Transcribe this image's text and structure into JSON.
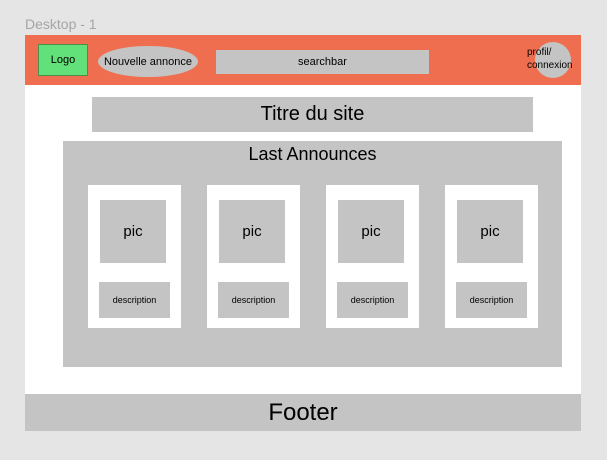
{
  "frame_label": "Desktop - 1",
  "header": {
    "logo": "Logo",
    "new_ad": "Nouvelle annonce",
    "searchbar": "searchbar",
    "profile": "profil/ connexion"
  },
  "site_title": "Titre du site",
  "announces": {
    "title": "Last Announces",
    "cards": [
      {
        "pic": "pic",
        "description": "description"
      },
      {
        "pic": "pic",
        "description": "description"
      },
      {
        "pic": "pic",
        "description": "description"
      },
      {
        "pic": "pic",
        "description": "description"
      }
    ]
  },
  "footer": "Footer",
  "colors": {
    "header": "#f06e50",
    "logo": "#62e07a",
    "placeholder_gray": "#c4c4c4",
    "canvas": "#e5e5e5"
  }
}
